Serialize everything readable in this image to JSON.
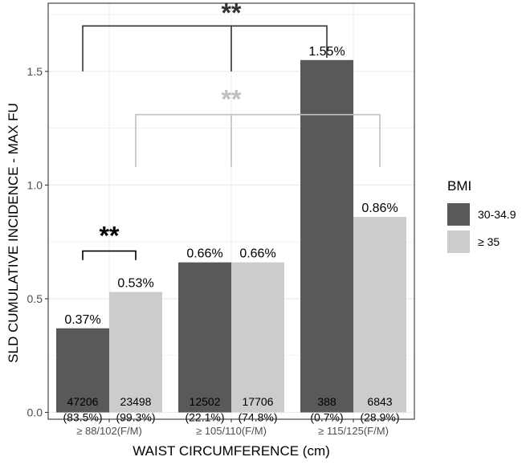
{
  "chart_data": {
    "type": "bar",
    "ylabel": "SLD CUMULATIVE INCIDENCE - MAX FU",
    "xlabel": "WAIST CIRCUMFERENCE (cm)",
    "ylim": [
      -0.03,
      1.8
    ],
    "yticks": [
      0.0,
      0.5,
      1.0,
      1.5
    ],
    "ytick_labels": [
      "0.0",
      "0.5",
      "1.0",
      "1.5"
    ],
    "grid": true,
    "legend_title": "BMI",
    "legend_position": "right",
    "categories": [
      "≥ 88/102(F/M)",
      "≥ 105/110(F/M)",
      "≥ 115/125(F/M)"
    ],
    "series": [
      {
        "name": "30-34.9",
        "color": "#595959",
        "values": [
          0.37,
          0.66,
          1.55
        ],
        "value_labels": [
          "0.37%",
          "0.66%",
          "1.55%"
        ],
        "counts": [
          "47206",
          "12502",
          "388"
        ],
        "percents": [
          "(83.5%)",
          "(22.1%)",
          "(0.7%)"
        ]
      },
      {
        "name": "≥ 35",
        "color": "#cccccc",
        "values": [
          0.53,
          0.66,
          0.86
        ],
        "value_labels": [
          "0.53%",
          "0.66%",
          "0.86%"
        ],
        "counts": [
          "23498",
          "17706",
          "6843"
        ],
        "percents": [
          "(99.3%)",
          "(74.8%)",
          "(28.9%)"
        ]
      }
    ],
    "annotations": [
      {
        "text": "**",
        "color": "#333333",
        "comparison": "30-34.9 across waist groups"
      },
      {
        "text": "**",
        "color": "#c0c0c0",
        "comparison": "≥ 35 across waist groups"
      },
      {
        "text": "**",
        "color": "#000000",
        "comparison": "30-34.9 vs ≥ 35 at ≥ 88/102(F/M)"
      }
    ]
  }
}
